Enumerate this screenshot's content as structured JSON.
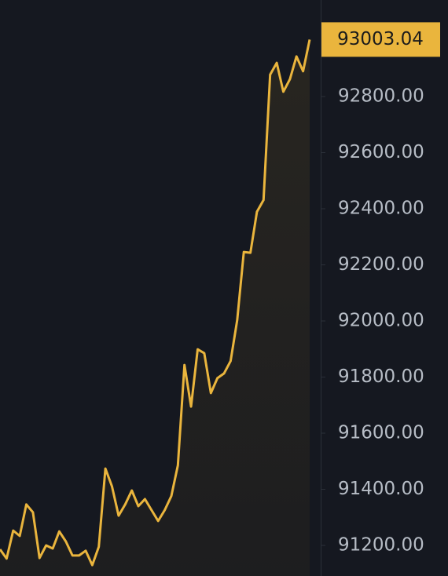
{
  "chart_data": {
    "type": "line",
    "color": "#eab53d",
    "background": "#151820",
    "values": [
      91186,
      91153,
      91253,
      91234,
      91346,
      91318,
      91155,
      91200,
      91189,
      91250,
      91214,
      91164,
      91164,
      91181,
      91130,
      91195,
      91474,
      91410,
      91306,
      91346,
      91396,
      91340,
      91365,
      91326,
      91287,
      91326,
      91376,
      91485,
      91843,
      91695,
      91899,
      91885,
      91743,
      91796,
      91813,
      91857,
      92003,
      92246,
      92243,
      92389,
      92431,
      92878,
      92920,
      92817,
      92862,
      92943,
      92890,
      93003.04
    ],
    "ylim": [
      91091,
      93144
    ],
    "yticks": [
      {
        "value": 91200,
        "label": "91200.00"
      },
      {
        "value": 91400,
        "label": "91400.00"
      },
      {
        "value": 91600,
        "label": "91600.00"
      },
      {
        "value": 91800,
        "label": "91800.00"
      },
      {
        "value": 92000,
        "label": "92000.00"
      },
      {
        "value": 92200,
        "label": "92200.00"
      },
      {
        "value": 92400,
        "label": "92400.00"
      },
      {
        "value": 92600,
        "label": "92600.00"
      },
      {
        "value": 92800,
        "label": "92800.00"
      }
    ]
  }
}
